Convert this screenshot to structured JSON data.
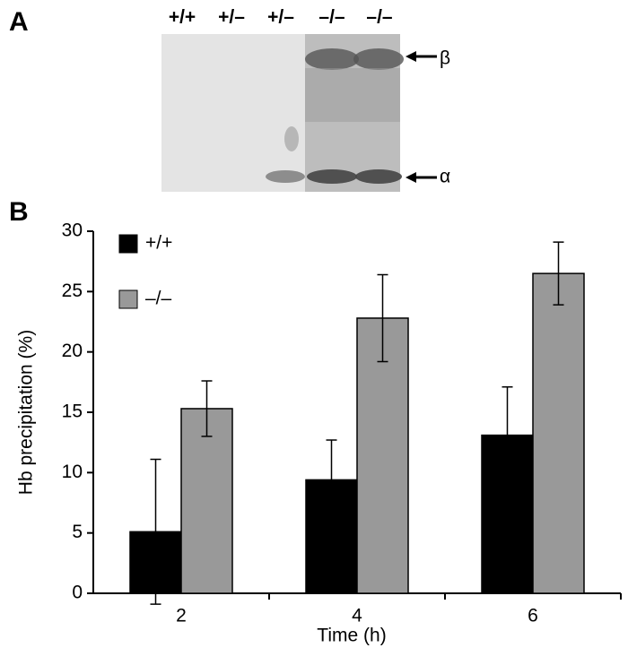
{
  "panels": {
    "a": "A",
    "b": "B"
  },
  "blot": {
    "lanes": [
      "+/+",
      "+/–",
      "+/–",
      "–/–",
      "–/–"
    ],
    "bands": [
      "β",
      "α"
    ]
  },
  "chart_data": {
    "type": "bar",
    "categories": [
      "2",
      "4",
      "6"
    ],
    "series": [
      {
        "name": "+/+",
        "color": "#000000",
        "values": [
          5.1,
          9.4,
          13.1
        ],
        "errors": [
          6.0,
          3.3,
          4.0
        ]
      },
      {
        "name": "–/–",
        "color": "#999999",
        "values": [
          15.3,
          22.8,
          26.5
        ],
        "errors": [
          2.3,
          3.6,
          2.6
        ]
      }
    ],
    "ylim": [
      0,
      30
    ],
    "yticks": [
      0,
      5,
      10,
      15,
      20,
      25,
      30
    ],
    "xlabel": "Time (h)",
    "ylabel": "Hb precipitation (%)",
    "grid": false
  }
}
